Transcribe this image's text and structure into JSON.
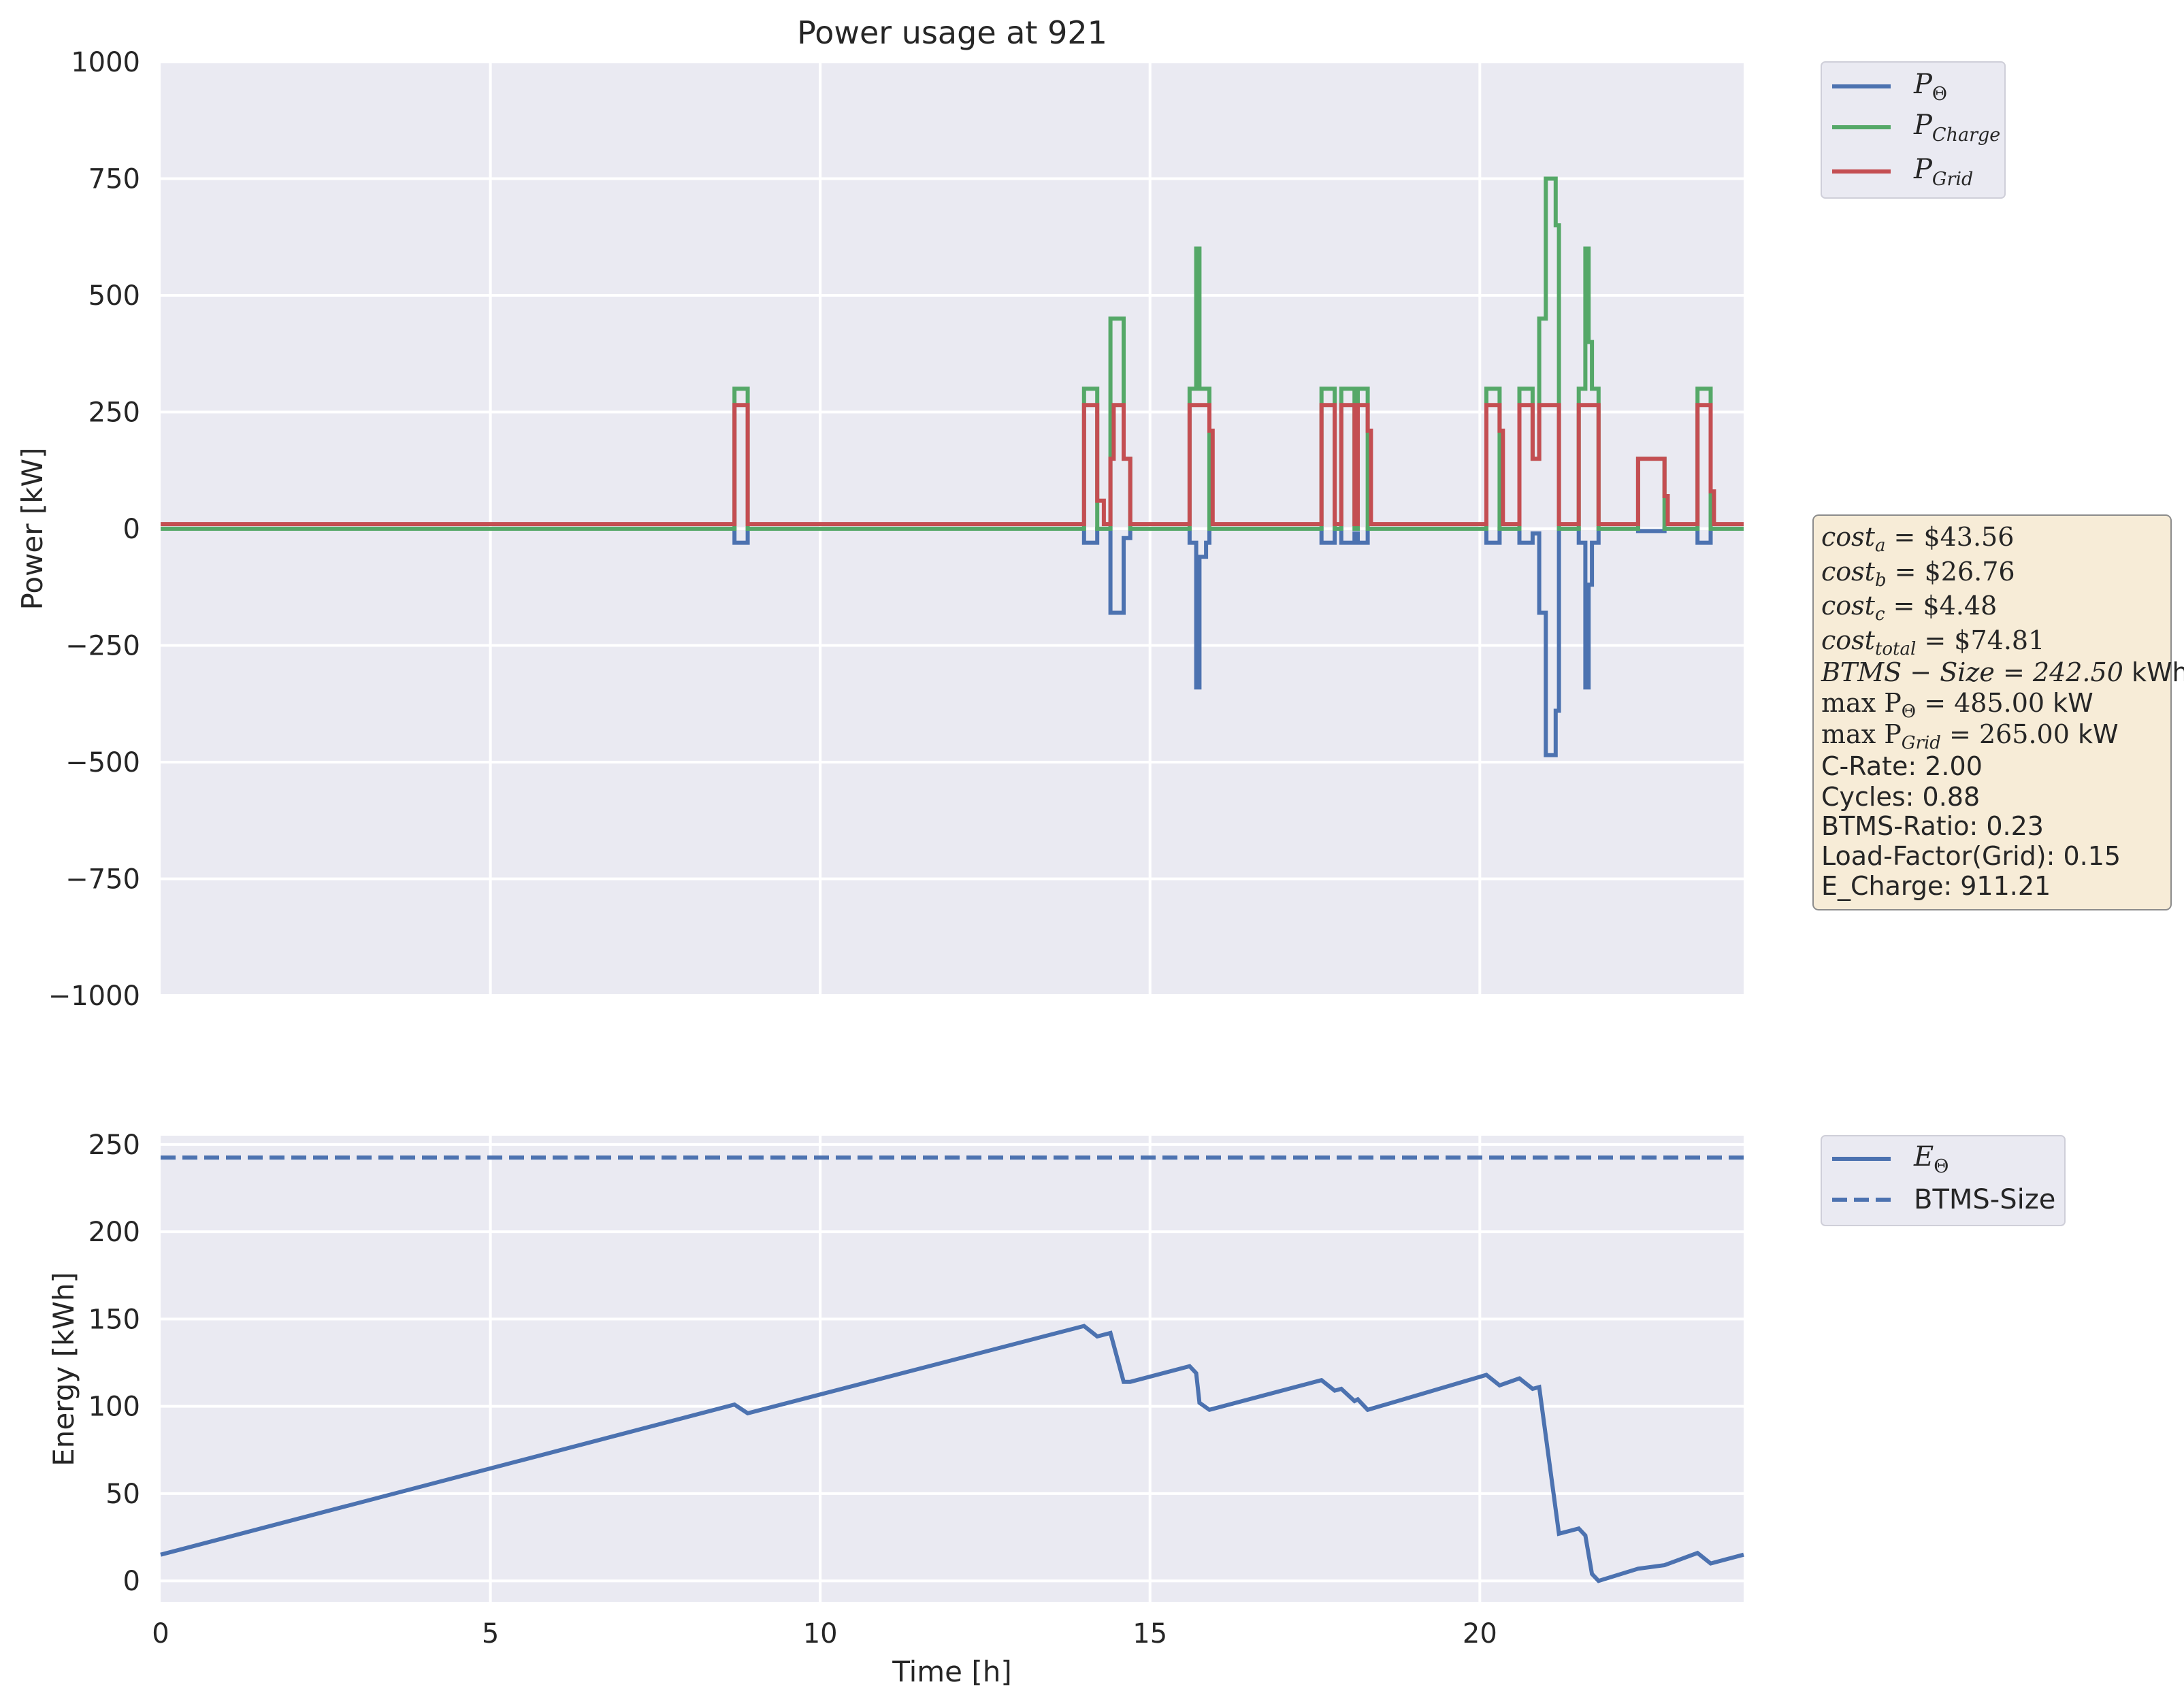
{
  "chart_data": [
    {
      "type": "line",
      "title": "Power usage at 921",
      "xlabel": "",
      "ylabel": "Power [kW]",
      "xlim": [
        0,
        24
      ],
      "ylim": [
        -1000,
        1000
      ],
      "xticks": [
        0,
        5,
        10,
        15,
        20
      ],
      "yticks": [
        1000,
        750,
        500,
        250,
        0,
        -250,
        -500,
        -750,
        -1000
      ],
      "ytick_labels": [
        "1000",
        "750",
        "500",
        "250",
        "0",
        "−250",
        "−500",
        "−750",
        "−1000"
      ],
      "grid": true,
      "legend_position": "outside-top-right",
      "step": true,
      "series": [
        {
          "name": "P_Θ",
          "color": "#4c72b0",
          "points": [
            [
              0,
              0
            ],
            [
              8.7,
              0
            ],
            [
              8.7,
              -30
            ],
            [
              8.9,
              -30
            ],
            [
              8.9,
              0
            ],
            [
              14,
              0
            ],
            [
              14,
              -30
            ],
            [
              14.2,
              -30
            ],
            [
              14.2,
              0
            ],
            [
              14.4,
              0
            ],
            [
              14.4,
              -180
            ],
            [
              14.6,
              -180
            ],
            [
              14.6,
              -20
            ],
            [
              14.7,
              -20
            ],
            [
              14.7,
              0
            ],
            [
              15.6,
              0
            ],
            [
              15.6,
              -30
            ],
            [
              15.7,
              -30
            ],
            [
              15.7,
              -340
            ],
            [
              15.75,
              -340
            ],
            [
              15.75,
              -60
            ],
            [
              15.85,
              -60
            ],
            [
              15.85,
              -30
            ],
            [
              15.9,
              -30
            ],
            [
              15.9,
              0
            ],
            [
              17.6,
              0
            ],
            [
              17.6,
              -30
            ],
            [
              17.8,
              -30
            ],
            [
              17.8,
              0
            ],
            [
              17.9,
              0
            ],
            [
              17.9,
              -30
            ],
            [
              18.1,
              -30
            ],
            [
              18.1,
              -10
            ],
            [
              18.15,
              -10
            ],
            [
              18.15,
              -30
            ],
            [
              18.3,
              -30
            ],
            [
              18.3,
              0
            ],
            [
              20.1,
              0
            ],
            [
              20.1,
              -30
            ],
            [
              20.3,
              -30
            ],
            [
              20.3,
              0
            ],
            [
              20.6,
              0
            ],
            [
              20.6,
              -30
            ],
            [
              20.8,
              -30
            ],
            [
              20.8,
              -10
            ],
            [
              20.9,
              -10
            ],
            [
              20.9,
              -180
            ],
            [
              21,
              -180
            ],
            [
              21,
              -485
            ],
            [
              21.15,
              -485
            ],
            [
              21.15,
              -390
            ],
            [
              21.2,
              -390
            ],
            [
              21.2,
              0
            ],
            [
              21.5,
              0
            ],
            [
              21.5,
              -30
            ],
            [
              21.6,
              -30
            ],
            [
              21.6,
              -340
            ],
            [
              21.65,
              -340
            ],
            [
              21.65,
              -120
            ],
            [
              21.7,
              -120
            ],
            [
              21.7,
              -30
            ],
            [
              21.8,
              -30
            ],
            [
              21.8,
              0
            ],
            [
              22.4,
              0
            ],
            [
              22.4,
              -5
            ],
            [
              22.8,
              -5
            ],
            [
              22.8,
              0
            ],
            [
              23.3,
              0
            ],
            [
              23.3,
              -30
            ],
            [
              23.5,
              -30
            ],
            [
              23.5,
              0
            ],
            [
              24,
              0
            ]
          ]
        },
        {
          "name": "P_Charge",
          "color": "#55a868",
          "points": [
            [
              0,
              0
            ],
            [
              8.7,
              0
            ],
            [
              8.7,
              300
            ],
            [
              8.9,
              300
            ],
            [
              8.9,
              0
            ],
            [
              14,
              0
            ],
            [
              14,
              300
            ],
            [
              14.2,
              300
            ],
            [
              14.2,
              0
            ],
            [
              14.4,
              0
            ],
            [
              14.4,
              450
            ],
            [
              14.6,
              450
            ],
            [
              14.6,
              150
            ],
            [
              14.7,
              150
            ],
            [
              14.7,
              0
            ],
            [
              15.6,
              0
            ],
            [
              15.6,
              300
            ],
            [
              15.7,
              300
            ],
            [
              15.7,
              600
            ],
            [
              15.75,
              600
            ],
            [
              15.75,
              300
            ],
            [
              15.9,
              300
            ],
            [
              15.9,
              0
            ],
            [
              17.6,
              0
            ],
            [
              17.6,
              300
            ],
            [
              17.8,
              300
            ],
            [
              17.8,
              0
            ],
            [
              17.9,
              0
            ],
            [
              17.9,
              300
            ],
            [
              18.1,
              300
            ],
            [
              18.1,
              0
            ],
            [
              18.15,
              0
            ],
            [
              18.15,
              300
            ],
            [
              18.3,
              300
            ],
            [
              18.3,
              0
            ],
            [
              20.1,
              0
            ],
            [
              20.1,
              300
            ],
            [
              20.3,
              300
            ],
            [
              20.3,
              0
            ],
            [
              20.6,
              0
            ],
            [
              20.6,
              300
            ],
            [
              20.8,
              300
            ],
            [
              20.8,
              150
            ],
            [
              20.9,
              150
            ],
            [
              20.9,
              450
            ],
            [
              21,
              450
            ],
            [
              21,
              750
            ],
            [
              21.15,
              750
            ],
            [
              21.15,
              650
            ],
            [
              21.2,
              650
            ],
            [
              21.2,
              0
            ],
            [
              21.5,
              0
            ],
            [
              21.5,
              300
            ],
            [
              21.6,
              300
            ],
            [
              21.6,
              600
            ],
            [
              21.65,
              600
            ],
            [
              21.65,
              400
            ],
            [
              21.7,
              400
            ],
            [
              21.7,
              300
            ],
            [
              21.8,
              300
            ],
            [
              21.8,
              0
            ],
            [
              22.4,
              0
            ],
            [
              22.4,
              150
            ],
            [
              22.8,
              150
            ],
            [
              22.8,
              0
            ],
            [
              23.3,
              0
            ],
            [
              23.3,
              300
            ],
            [
              23.5,
              300
            ],
            [
              23.5,
              0
            ],
            [
              24,
              0
            ]
          ]
        },
        {
          "name": "P_Grid",
          "color": "#c44e52",
          "points": [
            [
              0,
              10
            ],
            [
              8.7,
              10
            ],
            [
              8.7,
              265
            ],
            [
              8.9,
              265
            ],
            [
              8.9,
              10
            ],
            [
              14,
              10
            ],
            [
              14,
              265
            ],
            [
              14.2,
              265
            ],
            [
              14.2,
              60
            ],
            [
              14.3,
              60
            ],
            [
              14.3,
              10
            ],
            [
              14.4,
              10
            ],
            [
              14.4,
              150
            ],
            [
              14.45,
              150
            ],
            [
              14.45,
              265
            ],
            [
              14.6,
              265
            ],
            [
              14.6,
              150
            ],
            [
              14.7,
              150
            ],
            [
              14.7,
              10
            ],
            [
              15.6,
              10
            ],
            [
              15.6,
              265
            ],
            [
              15.9,
              265
            ],
            [
              15.9,
              210
            ],
            [
              15.95,
              210
            ],
            [
              15.95,
              10
            ],
            [
              17.6,
              10
            ],
            [
              17.6,
              265
            ],
            [
              17.8,
              265
            ],
            [
              17.8,
              10
            ],
            [
              17.9,
              10
            ],
            [
              17.9,
              265
            ],
            [
              18.1,
              265
            ],
            [
              18.1,
              10
            ],
            [
              18.15,
              10
            ],
            [
              18.15,
              265
            ],
            [
              18.3,
              265
            ],
            [
              18.3,
              210
            ],
            [
              18.35,
              210
            ],
            [
              18.35,
              10
            ],
            [
              20.1,
              10
            ],
            [
              20.1,
              265
            ],
            [
              20.3,
              265
            ],
            [
              20.3,
              210
            ],
            [
              20.35,
              210
            ],
            [
              20.35,
              10
            ],
            [
              20.6,
              10
            ],
            [
              20.6,
              265
            ],
            [
              20.8,
              265
            ],
            [
              20.8,
              150
            ],
            [
              20.9,
              150
            ],
            [
              20.9,
              265
            ],
            [
              21.2,
              265
            ],
            [
              21.2,
              10
            ],
            [
              21.5,
              10
            ],
            [
              21.5,
              265
            ],
            [
              21.8,
              265
            ],
            [
              21.8,
              10
            ],
            [
              22.4,
              10
            ],
            [
              22.4,
              150
            ],
            [
              22.8,
              150
            ],
            [
              22.8,
              70
            ],
            [
              22.85,
              70
            ],
            [
              22.85,
              10
            ],
            [
              23.3,
              10
            ],
            [
              23.3,
              265
            ],
            [
              23.5,
              265
            ],
            [
              23.5,
              80
            ],
            [
              23.55,
              80
            ],
            [
              23.55,
              10
            ],
            [
              24,
              10
            ]
          ]
        }
      ]
    },
    {
      "type": "line",
      "title": "",
      "xlabel": "Time [h]",
      "ylabel": "Energy [kWh]",
      "xlim": [
        0,
        24
      ],
      "ylim": [
        -12,
        255
      ],
      "xticks": [
        0,
        5,
        10,
        15,
        20
      ],
      "yticks": [
        250,
        200,
        150,
        100,
        50,
        0
      ],
      "grid": true,
      "legend_position": "outside-top-right",
      "series": [
        {
          "name": "E_Θ",
          "color": "#4c72b0",
          "style": "solid",
          "points": [
            [
              0,
              15
            ],
            [
              8.7,
              101
            ],
            [
              8.9,
              96
            ],
            [
              14,
              146
            ],
            [
              14.2,
              140
            ],
            [
              14.4,
              142
            ],
            [
              14.6,
              114
            ],
            [
              14.7,
              114
            ],
            [
              15.6,
              123
            ],
            [
              15.7,
              119
            ],
            [
              15.75,
              102
            ],
            [
              15.9,
              98
            ],
            [
              17.6,
              115
            ],
            [
              17.8,
              109
            ],
            [
              17.9,
              110
            ],
            [
              18.1,
              103
            ],
            [
              18.15,
              104
            ],
            [
              18.3,
              98
            ],
            [
              20.1,
              118
            ],
            [
              20.3,
              112
            ],
            [
              20.6,
              116
            ],
            [
              20.8,
              110
            ],
            [
              20.9,
              111
            ],
            [
              21.2,
              27
            ],
            [
              21.5,
              30
            ],
            [
              21.6,
              26
            ],
            [
              21.7,
              4
            ],
            [
              21.8,
              0
            ],
            [
              22.4,
              7
            ],
            [
              22.8,
              9
            ],
            [
              23.3,
              16
            ],
            [
              23.5,
              10
            ],
            [
              24,
              15
            ]
          ]
        },
        {
          "name": "BTMS-Size",
          "color": "#4c72b0",
          "style": "dashed",
          "points": [
            [
              0,
              242.5
            ],
            [
              24,
              242.5
            ]
          ]
        }
      ]
    }
  ],
  "legend_top": {
    "p_theta": {
      "main": "P",
      "sub": "Θ"
    },
    "p_charge": {
      "main": "P",
      "sub": "Charge"
    },
    "p_grid": {
      "main": "P",
      "sub": "Grid"
    }
  },
  "legend_bottom": {
    "e_theta": {
      "main": "E",
      "sub": "Θ"
    },
    "btms_size": "BTMS-Size"
  },
  "info_box": {
    "cost_a": {
      "main": "cost",
      "sub": "a",
      "rest": " = $43.56"
    },
    "cost_b": {
      "main": "cost",
      "sub": "b",
      "rest": " = $26.76"
    },
    "cost_c": {
      "main": "cost",
      "sub": "c",
      "rest": " = $4.48"
    },
    "cost_total": {
      "main": "cost",
      "sub": "total",
      "rest": " = $74.81"
    },
    "btms_size": {
      "math": "BTMS − Size = 242.50",
      "unit": " kWh"
    },
    "max_p_theta": {
      "main": "max P",
      "sub": "Θ",
      "rest": " = 485.00",
      "unit": " kW"
    },
    "max_p_grid": {
      "main": "max P",
      "sub": "Grid",
      "rest": " = 265.00",
      "unit": " kW"
    },
    "c_rate": "C-Rate: 2.00",
    "cycles": "Cycles: 0.88",
    "btms_ratio": "BTMS-Ratio: 0.23",
    "load_factor": "Load-Factor(Grid): 0.15",
    "e_charge": "E_Charge: 911.21"
  },
  "colors": {
    "axes_bg": "#eaeaf2",
    "grid": "#ffffff",
    "blue": "#4c72b0",
    "green": "#55a868",
    "red": "#c44e52",
    "info_bg": "#f7ecd7"
  }
}
